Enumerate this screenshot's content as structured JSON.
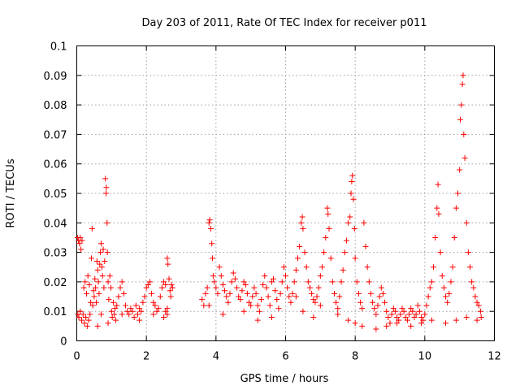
{
  "chart_data": {
    "type": "scatter",
    "title": "Day 203 of 2011, Rate Of TEC Index for receiver p011",
    "xlabel": "GPS time / hours",
    "ylabel": "ROTI / TECUs",
    "xlim": [
      0,
      12
    ],
    "ylim": [
      0,
      0.1
    ],
    "x_ticks": [
      "0",
      "2",
      "4",
      "6",
      "8",
      "10",
      "12"
    ],
    "y_ticks": [
      "0",
      "0.01",
      "0.02",
      "0.03",
      "0.04",
      "0.05",
      "0.06",
      "0.07",
      "0.08",
      "0.09",
      "0.1"
    ],
    "grid": true,
    "marker": "+",
    "color": "#ff0000",
    "series": [
      {
        "name": "ROTI",
        "points": [
          [
            0.02,
            0.035
          ],
          [
            0.05,
            0.034
          ],
          [
            0.08,
            0.033
          ],
          [
            0.1,
            0.035
          ],
          [
            0.12,
            0.031
          ],
          [
            0.15,
            0.034
          ],
          [
            0.03,
            0.009
          ],
          [
            0.06,
            0.008
          ],
          [
            0.1,
            0.01
          ],
          [
            0.14,
            0.007
          ],
          [
            0.18,
            0.009
          ],
          [
            0.22,
            0.006
          ],
          [
            0.26,
            0.008
          ],
          [
            0.3,
            0.005
          ],
          [
            0.34,
            0.007
          ],
          [
            0.38,
            0.009
          ],
          [
            0.2,
            0.018
          ],
          [
            0.24,
            0.02
          ],
          [
            0.28,
            0.016
          ],
          [
            0.32,
            0.022
          ],
          [
            0.36,
            0.019
          ],
          [
            0.4,
            0.013
          ],
          [
            0.42,
            0.028
          ],
          [
            0.44,
            0.038
          ],
          [
            0.46,
            0.012
          ],
          [
            0.48,
            0.017
          ],
          [
            0.5,
            0.015
          ],
          [
            0.52,
            0.021
          ],
          [
            0.54,
            0.018
          ],
          [
            0.56,
            0.013
          ],
          [
            0.58,
            0.027
          ],
          [
            0.6,
            0.024
          ],
          [
            0.62,
            0.02
          ],
          [
            0.64,
            0.016
          ],
          [
            0.66,
            0.026
          ],
          [
            0.68,
            0.03
          ],
          [
            0.7,
            0.033
          ],
          [
            0.72,
            0.025
          ],
          [
            0.74,
            0.022
          ],
          [
            0.76,
            0.031
          ],
          [
            0.78,
            0.018
          ],
          [
            0.8,
            0.027
          ],
          [
            0.82,
            0.055
          ],
          [
            0.84,
            0.05
          ],
          [
            0.85,
            0.052
          ],
          [
            0.87,
            0.04
          ],
          [
            0.88,
            0.03
          ],
          [
            0.9,
            0.02
          ],
          [
            0.92,
            0.014
          ],
          [
            0.95,
            0.022
          ],
          [
            0.98,
            0.018
          ],
          [
            1.0,
            0.01
          ],
          [
            1.02,
            0.008
          ],
          [
            1.05,
            0.013
          ],
          [
            1.08,
            0.009
          ],
          [
            1.1,
            0.011
          ],
          [
            1.12,
            0.007
          ],
          [
            1.15,
            0.012
          ],
          [
            1.2,
            0.015
          ],
          [
            1.25,
            0.018
          ],
          [
            1.3,
            0.02
          ],
          [
            1.35,
            0.016
          ],
          [
            1.4,
            0.012
          ],
          [
            1.45,
            0.01
          ],
          [
            1.5,
            0.009
          ],
          [
            1.55,
            0.011
          ],
          [
            1.6,
            0.01
          ],
          [
            1.65,
            0.008
          ],
          [
            1.7,
            0.012
          ],
          [
            1.75,
            0.009
          ],
          [
            1.8,
            0.011
          ],
          [
            1.85,
            0.01
          ],
          [
            1.9,
            0.013
          ],
          [
            1.95,
            0.015
          ],
          [
            2.0,
            0.018
          ],
          [
            2.05,
            0.019
          ],
          [
            2.1,
            0.02
          ],
          [
            2.15,
            0.016
          ],
          [
            2.2,
            0.013
          ],
          [
            2.25,
            0.012
          ],
          [
            2.3,
            0.01
          ],
          [
            2.35,
            0.011
          ],
          [
            2.4,
            0.015
          ],
          [
            2.45,
            0.018
          ],
          [
            2.5,
            0.02
          ],
          [
            2.55,
            0.019
          ],
          [
            2.6,
            0.028
          ],
          [
            2.62,
            0.026
          ],
          [
            2.65,
            0.021
          ],
          [
            2.68,
            0.017
          ],
          [
            2.7,
            0.015
          ],
          [
            2.72,
            0.019
          ],
          [
            2.75,
            0.018
          ],
          [
            2.5,
            0.008
          ],
          [
            2.55,
            0.01
          ],
          [
            2.6,
            0.009
          ],
          [
            3.6,
            0.014
          ],
          [
            3.65,
            0.012
          ],
          [
            3.7,
            0.016
          ],
          [
            3.75,
            0.018
          ],
          [
            3.8,
            0.04
          ],
          [
            3.82,
            0.041
          ],
          [
            3.85,
            0.038
          ],
          [
            3.88,
            0.033
          ],
          [
            3.9,
            0.028
          ],
          [
            3.92,
            0.022
          ],
          [
            3.95,
            0.02
          ],
          [
            4.0,
            0.018
          ],
          [
            4.05,
            0.016
          ],
          [
            4.1,
            0.025
          ],
          [
            4.15,
            0.022
          ],
          [
            4.2,
            0.019
          ],
          [
            4.25,
            0.017
          ],
          [
            4.3,
            0.015
          ],
          [
            4.35,
            0.013
          ],
          [
            4.4,
            0.016
          ],
          [
            4.45,
            0.02
          ],
          [
            4.5,
            0.023
          ],
          [
            4.55,
            0.021
          ],
          [
            4.6,
            0.018
          ],
          [
            4.65,
            0.015
          ],
          [
            4.7,
            0.014
          ],
          [
            4.75,
            0.017
          ],
          [
            4.8,
            0.02
          ],
          [
            4.85,
            0.019
          ],
          [
            4.9,
            0.016
          ],
          [
            4.95,
            0.013
          ],
          [
            5.0,
            0.012
          ],
          [
            5.05,
            0.015
          ],
          [
            5.1,
            0.018
          ],
          [
            5.15,
            0.016
          ],
          [
            5.2,
            0.012
          ],
          [
            5.25,
            0.01
          ],
          [
            5.3,
            0.014
          ],
          [
            5.35,
            0.019
          ],
          [
            5.4,
            0.022
          ],
          [
            5.45,
            0.018
          ],
          [
            5.5,
            0.015
          ],
          [
            5.55,
            0.012
          ],
          [
            5.6,
            0.02
          ],
          [
            5.65,
            0.021
          ],
          [
            5.7,
            0.017
          ],
          [
            5.75,
            0.014
          ],
          [
            5.8,
            0.011
          ],
          [
            5.85,
            0.016
          ],
          [
            5.9,
            0.02
          ],
          [
            5.95,
            0.025
          ],
          [
            6.0,
            0.022
          ],
          [
            6.05,
            0.018
          ],
          [
            6.1,
            0.015
          ],
          [
            6.15,
            0.013
          ],
          [
            6.2,
            0.016
          ],
          [
            6.25,
            0.02
          ],
          [
            6.3,
            0.024
          ],
          [
            6.35,
            0.028
          ],
          [
            6.4,
            0.032
          ],
          [
            6.45,
            0.04
          ],
          [
            6.48,
            0.042
          ],
          [
            6.5,
            0.038
          ],
          [
            6.55,
            0.03
          ],
          [
            6.6,
            0.025
          ],
          [
            6.65,
            0.02
          ],
          [
            6.7,
            0.018
          ],
          [
            6.75,
            0.016
          ],
          [
            6.8,
            0.014
          ],
          [
            6.85,
            0.013
          ],
          [
            6.9,
            0.015
          ],
          [
            6.95,
            0.018
          ],
          [
            7.0,
            0.022
          ],
          [
            7.05,
            0.025
          ],
          [
            7.1,
            0.03
          ],
          [
            7.15,
            0.035
          ],
          [
            7.2,
            0.045
          ],
          [
            7.22,
            0.043
          ],
          [
            7.25,
            0.038
          ],
          [
            7.3,
            0.028
          ],
          [
            7.35,
            0.02
          ],
          [
            7.4,
            0.016
          ],
          [
            7.45,
            0.013
          ],
          [
            7.5,
            0.011
          ],
          [
            7.55,
            0.015
          ],
          [
            7.6,
            0.02
          ],
          [
            7.65,
            0.024
          ],
          [
            7.7,
            0.03
          ],
          [
            7.75,
            0.034
          ],
          [
            7.8,
            0.04
          ],
          [
            7.85,
            0.042
          ],
          [
            7.88,
            0.05
          ],
          [
            7.9,
            0.054
          ],
          [
            7.92,
            0.056
          ],
          [
            7.95,
            0.048
          ],
          [
            7.98,
            0.038
          ],
          [
            8.0,
            0.028
          ],
          [
            8.05,
            0.02
          ],
          [
            8.1,
            0.016
          ],
          [
            8.15,
            0.013
          ],
          [
            8.2,
            0.011
          ],
          [
            8.25,
            0.04
          ],
          [
            8.3,
            0.032
          ],
          [
            8.35,
            0.025
          ],
          [
            8.4,
            0.02
          ],
          [
            8.45,
            0.016
          ],
          [
            8.5,
            0.013
          ],
          [
            8.55,
            0.011
          ],
          [
            8.6,
            0.009
          ],
          [
            8.65,
            0.012
          ],
          [
            8.7,
            0.015
          ],
          [
            8.75,
            0.018
          ],
          [
            8.8,
            0.016
          ],
          [
            8.85,
            0.013
          ],
          [
            8.9,
            0.01
          ],
          [
            8.95,
            0.008
          ],
          [
            9.0,
            0.006
          ],
          [
            9.05,
            0.009
          ],
          [
            9.1,
            0.011
          ],
          [
            9.15,
            0.01
          ],
          [
            9.2,
            0.008
          ],
          [
            9.25,
            0.007
          ],
          [
            9.3,
            0.009
          ],
          [
            9.35,
            0.011
          ],
          [
            9.4,
            0.01
          ],
          [
            9.45,
            0.008
          ],
          [
            9.5,
            0.007
          ],
          [
            9.55,
            0.009
          ],
          [
            9.6,
            0.011
          ],
          [
            9.65,
            0.01
          ],
          [
            9.7,
            0.008
          ],
          [
            9.75,
            0.009
          ],
          [
            9.8,
            0.012
          ],
          [
            9.85,
            0.01
          ],
          [
            9.9,
            0.008
          ],
          [
            9.95,
            0.007
          ],
          [
            10.0,
            0.009
          ],
          [
            10.05,
            0.012
          ],
          [
            10.1,
            0.015
          ],
          [
            10.15,
            0.018
          ],
          [
            10.2,
            0.02
          ],
          [
            10.25,
            0.025
          ],
          [
            10.3,
            0.035
          ],
          [
            10.35,
            0.045
          ],
          [
            10.38,
            0.053
          ],
          [
            10.4,
            0.043
          ],
          [
            10.45,
            0.03
          ],
          [
            10.5,
            0.022
          ],
          [
            10.55,
            0.018
          ],
          [
            10.6,
            0.015
          ],
          [
            10.65,
            0.013
          ],
          [
            10.7,
            0.016
          ],
          [
            10.75,
            0.02
          ],
          [
            10.8,
            0.025
          ],
          [
            10.85,
            0.035
          ],
          [
            10.9,
            0.045
          ],
          [
            10.95,
            0.05
          ],
          [
            11.0,
            0.058
          ],
          [
            11.02,
            0.075
          ],
          [
            11.05,
            0.08
          ],
          [
            11.08,
            0.087
          ],
          [
            11.1,
            0.09
          ],
          [
            11.12,
            0.07
          ],
          [
            11.15,
            0.062
          ],
          [
            11.2,
            0.04
          ],
          [
            11.25,
            0.03
          ],
          [
            11.3,
            0.025
          ],
          [
            11.35,
            0.02
          ],
          [
            11.4,
            0.018
          ],
          [
            11.45,
            0.015
          ],
          [
            11.5,
            0.013
          ],
          [
            11.55,
            0.012
          ],
          [
            11.6,
            0.01
          ],
          [
            11.62,
            0.008
          ],
          [
            6.5,
            0.01
          ],
          [
            6.8,
            0.008
          ],
          [
            7.0,
            0.012
          ],
          [
            7.5,
            0.009
          ],
          [
            7.8,
            0.007
          ],
          [
            8.0,
            0.006
          ],
          [
            8.2,
            0.005
          ],
          [
            8.6,
            0.004
          ],
          [
            8.9,
            0.005
          ],
          [
            9.2,
            0.006
          ],
          [
            9.6,
            0.005
          ],
          [
            9.9,
            0.006
          ],
          [
            10.2,
            0.007
          ],
          [
            10.6,
            0.006
          ],
          [
            10.9,
            0.007
          ],
          [
            11.2,
            0.008
          ],
          [
            11.5,
            0.007
          ],
          [
            6.3,
            0.015
          ],
          [
            5.6,
            0.008
          ],
          [
            5.2,
            0.007
          ],
          [
            4.8,
            0.01
          ],
          [
            4.2,
            0.009
          ],
          [
            3.8,
            0.012
          ],
          [
            0.6,
            0.005
          ],
          [
            0.9,
            0.006
          ],
          [
            1.3,
            0.009
          ],
          [
            1.8,
            0.007
          ],
          [
            2.2,
            0.009
          ],
          [
            2.6,
            0.011
          ],
          [
            0.7,
            0.009
          ]
        ]
      }
    ]
  }
}
